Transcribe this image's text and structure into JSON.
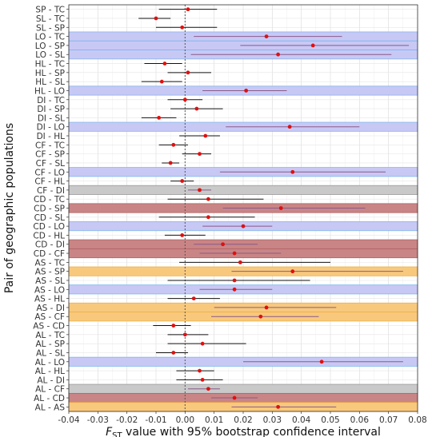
{
  "chart_data": {
    "type": "forest",
    "xlabel": "F",
    "xlabel_sub": "ST",
    "xlabel_rest": " value with 95% bootstrap confidence interval",
    "ylabel": "Pair of geographic populations",
    "xlim": [
      -0.04,
      0.08
    ],
    "xticks": [
      -0.04,
      -0.03,
      -0.02,
      -0.01,
      0.0,
      0.01,
      0.02,
      0.03,
      0.04,
      0.05,
      0.06,
      0.07,
      0.08
    ],
    "xtick_labels": [
      "-0.04",
      "-0.03",
      "-0.02",
      "-0.01",
      "0.00",
      "0.01",
      "0.02",
      "0.03",
      "0.04",
      "0.05",
      "0.06",
      "0.07",
      "0.08"
    ],
    "reference_line_x": 0.0,
    "grid": true,
    "highlight_colors": {
      "LO": "#c8c8f5",
      "DI": "#c9c9c9",
      "SP": "#c98585",
      "CF": "#c98585",
      "AS": "#f8c97d"
    },
    "point_color": "#e01010",
    "rows": [
      {
        "label": "SP - TC",
        "value": 0.001,
        "ci": [
          -0.009,
          0.011
        ],
        "highlight": null
      },
      {
        "label": "SL - TC",
        "value": -0.01,
        "ci": [
          -0.016,
          -0.005
        ],
        "highlight": null
      },
      {
        "label": "SL - SP",
        "value": -0.001,
        "ci": [
          -0.01,
          0.011
        ],
        "highlight": null
      },
      {
        "label": "LO - TC",
        "value": 0.028,
        "ci": [
          0.003,
          0.054
        ],
        "highlight": "LO"
      },
      {
        "label": "LO - SP",
        "value": 0.044,
        "ci": [
          0.019,
          0.077
        ],
        "highlight": "LO"
      },
      {
        "label": "LO - SL",
        "value": 0.032,
        "ci": [
          0.002,
          0.071
        ],
        "highlight": "LO"
      },
      {
        "label": "HL - TC",
        "value": -0.007,
        "ci": [
          -0.014,
          -0.001
        ],
        "highlight": null
      },
      {
        "label": "HL - SP",
        "value": 0.001,
        "ci": [
          -0.006,
          0.009
        ],
        "highlight": null
      },
      {
        "label": "HL - SL",
        "value": -0.008,
        "ci": [
          -0.015,
          -0.001
        ],
        "highlight": null
      },
      {
        "label": "HL - LO",
        "value": 0.021,
        "ci": [
          0.006,
          0.035
        ],
        "highlight": "LO"
      },
      {
        "label": "DI - TC",
        "value": 0.0,
        "ci": [
          -0.006,
          0.006
        ],
        "highlight": null
      },
      {
        "label": "DI - SP",
        "value": 0.004,
        "ci": [
          -0.005,
          0.013
        ],
        "highlight": null
      },
      {
        "label": "DI - SL",
        "value": -0.009,
        "ci": [
          -0.015,
          -0.003
        ],
        "highlight": null
      },
      {
        "label": "DI - LO",
        "value": 0.036,
        "ci": [
          0.014,
          0.06
        ],
        "highlight": "LO"
      },
      {
        "label": "DI - HL",
        "value": 0.007,
        "ci": [
          -0.002,
          0.012
        ],
        "highlight": null
      },
      {
        "label": "CF - TC",
        "value": -0.004,
        "ci": [
          -0.009,
          0.001
        ],
        "highlight": null
      },
      {
        "label": "CF - SP",
        "value": 0.005,
        "ci": [
          -0.001,
          0.009
        ],
        "highlight": null
      },
      {
        "label": "CF - SL",
        "value": -0.005,
        "ci": [
          -0.008,
          -0.002
        ],
        "highlight": null
      },
      {
        "label": "CF - LO",
        "value": 0.037,
        "ci": [
          0.012,
          0.069
        ],
        "highlight": "LO"
      },
      {
        "label": "CF - HL",
        "value": -0.001,
        "ci": [
          -0.005,
          0.003
        ],
        "highlight": null
      },
      {
        "label": "CF - DI",
        "value": 0.005,
        "ci": [
          0.001,
          0.009
        ],
        "highlight": "DI"
      },
      {
        "label": "CD - TC",
        "value": 0.008,
        "ci": [
          -0.006,
          0.027
        ],
        "highlight": null
      },
      {
        "label": "CD - SP",
        "value": 0.033,
        "ci": [
          0.013,
          0.062
        ],
        "highlight": "SP"
      },
      {
        "label": "CD - SL",
        "value": 0.008,
        "ci": [
          -0.009,
          0.024
        ],
        "highlight": null
      },
      {
        "label": "CD - LO",
        "value": 0.02,
        "ci": [
          0.006,
          0.03
        ],
        "highlight": "LO"
      },
      {
        "label": "CD - HL",
        "value": -0.001,
        "ci": [
          -0.007,
          0.007
        ],
        "highlight": null
      },
      {
        "label": "CD - DI",
        "value": 0.013,
        "ci": [
          0.003,
          0.025
        ],
        "highlight": "SP"
      },
      {
        "label": "CD - CF",
        "value": 0.017,
        "ci": [
          0.005,
          0.033
        ],
        "highlight": "CF"
      },
      {
        "label": "AS - TC",
        "value": 0.019,
        "ci": [
          -0.002,
          0.05
        ],
        "highlight": null
      },
      {
        "label": "AS - SP",
        "value": 0.037,
        "ci": [
          0.016,
          0.075
        ],
        "highlight": "AS"
      },
      {
        "label": "AS - SL",
        "value": 0.017,
        "ci": [
          -0.006,
          0.043
        ],
        "highlight": null
      },
      {
        "label": "AS - LO",
        "value": 0.017,
        "ci": [
          0.005,
          0.03
        ],
        "highlight": "LO"
      },
      {
        "label": "AS - HL",
        "value": 0.003,
        "ci": [
          -0.006,
          0.012
        ],
        "highlight": null
      },
      {
        "label": "AS - DI",
        "value": 0.028,
        "ci": [
          0.01,
          0.052
        ],
        "highlight": "AS"
      },
      {
        "label": "AS - CF",
        "value": 0.026,
        "ci": [
          0.009,
          0.046
        ],
        "highlight": "AS"
      },
      {
        "label": "AS - CD",
        "value": -0.004,
        "ci": [
          -0.011,
          0.002
        ],
        "highlight": null
      },
      {
        "label": "AL - TC",
        "value": 0.0,
        "ci": [
          -0.006,
          0.008
        ],
        "highlight": null
      },
      {
        "label": "AL - SP",
        "value": 0.006,
        "ci": [
          -0.006,
          0.021
        ],
        "highlight": null
      },
      {
        "label": "AL - SL",
        "value": -0.004,
        "ci": [
          -0.01,
          0.001
        ],
        "highlight": null
      },
      {
        "label": "AL - LO",
        "value": 0.047,
        "ci": [
          0.02,
          0.075
        ],
        "highlight": "LO"
      },
      {
        "label": "AL - HL",
        "value": 0.005,
        "ci": [
          -0.003,
          0.01
        ],
        "highlight": null
      },
      {
        "label": "AL - DI",
        "value": 0.006,
        "ci": [
          -0.003,
          0.013
        ],
        "highlight": null
      },
      {
        "label": "AL - CF",
        "value": 0.008,
        "ci": [
          0.001,
          0.012
        ],
        "highlight": "DI"
      },
      {
        "label": "AL - CD",
        "value": 0.017,
        "ci": [
          0.009,
          0.025
        ],
        "highlight": "SP"
      },
      {
        "label": "AL - AS",
        "value": 0.032,
        "ci": [
          0.016,
          0.052
        ],
        "highlight": "AS"
      }
    ]
  }
}
